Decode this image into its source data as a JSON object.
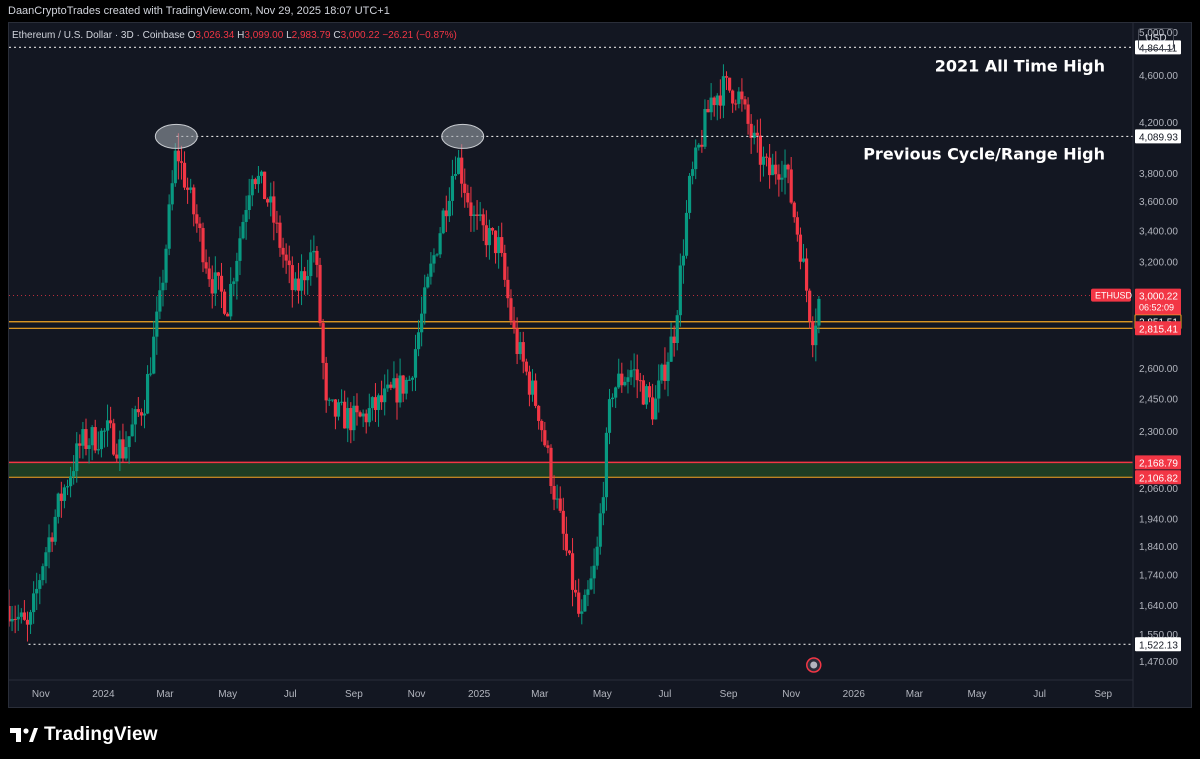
{
  "header": {
    "attribution": "DaanCryptoTrades created with TradingView.com, Nov 29, 2025 18:07 UTC+1"
  },
  "symbol": {
    "name": "Ethereum / U.S. Dollar · 3D · Coinbase",
    "open_label": "O",
    "open": "3,026.34",
    "high_label": "H",
    "high": "3,099.00",
    "low_label": "L",
    "low": "2,983.79",
    "close_label": "C",
    "close": "3,000.22",
    "change": "−26.21 (−0.87%)"
  },
  "currency": "USD",
  "footer": {
    "brand": "TradingView"
  },
  "colors": {
    "background": "#131722",
    "up": "#089981",
    "down": "#f23645",
    "orange_line": "#f5a623",
    "green_zone": "#1d3d24",
    "red_line": "#f23645"
  },
  "chart_data": {
    "type": "candlestick",
    "y_scale": "log",
    "ylim": [
      1420,
      5100
    ],
    "x_range": [
      "2023-10-01",
      "2026-09-30"
    ],
    "price_ticks": [
      "5,000.00",
      "4,600.00",
      "4,200.00",
      "3,800.00",
      "3,600.00",
      "3,400.00",
      "3,200.00",
      "2,600.00",
      "2,450.00",
      "2,300.00",
      "2,060.00",
      "1,940.00",
      "1,840.00",
      "1,740.00",
      "1,640.00",
      "1,550.00",
      "1,470.00"
    ],
    "price_tick_values": [
      5000,
      4600,
      4200,
      3800,
      3600,
      3400,
      3200,
      2600,
      2450,
      2300,
      2060,
      1940,
      1840,
      1740,
      1640,
      1550,
      1470
    ],
    "time_ticks": [
      {
        "label": "Nov",
        "date": "2023-11-01"
      },
      {
        "label": "2024",
        "date": "2024-01-01"
      },
      {
        "label": "Mar",
        "date": "2024-03-01"
      },
      {
        "label": "May",
        "date": "2024-05-01"
      },
      {
        "label": "Jul",
        "date": "2024-07-01"
      },
      {
        "label": "Sep",
        "date": "2024-09-01"
      },
      {
        "label": "Nov",
        "date": "2024-11-01"
      },
      {
        "label": "2025",
        "date": "2025-01-01"
      },
      {
        "label": "Mar",
        "date": "2025-03-01"
      },
      {
        "label": "May",
        "date": "2025-05-01"
      },
      {
        "label": "Jul",
        "date": "2025-07-01"
      },
      {
        "label": "Sep",
        "date": "2025-09-01"
      },
      {
        "label": "Nov",
        "date": "2025-11-01"
      },
      {
        "label": "2026",
        "date": "2026-01-01"
      },
      {
        "label": "Mar",
        "date": "2026-03-01"
      },
      {
        "label": "May",
        "date": "2026-05-01"
      },
      {
        "label": "Jul",
        "date": "2026-07-01"
      },
      {
        "label": "Sep",
        "date": "2026-09-01"
      }
    ],
    "price_path": [
      [
        "2023-10-01",
        1640
      ],
      [
        "2023-10-20",
        1560
      ],
      [
        "2023-11-03",
        1790
      ],
      [
        "2023-11-20",
        2020
      ],
      [
        "2023-12-10",
        2250
      ],
      [
        "2024-01-05",
        2300
      ],
      [
        "2024-01-20",
        2220
      ],
      [
        "2024-02-10",
        2450
      ],
      [
        "2024-02-25",
        2950
      ],
      [
        "2024-03-12",
        4000
      ],
      [
        "2024-03-30",
        3500
      ],
      [
        "2024-04-15",
        3100
      ],
      [
        "2024-05-01",
        2950
      ],
      [
        "2024-05-25",
        3850
      ],
      [
        "2024-06-10",
        3600
      ],
      [
        "2024-07-05",
        3000
      ],
      [
        "2024-07-25",
        3300
      ],
      [
        "2024-08-05",
        2400
      ],
      [
        "2024-09-05",
        2350
      ],
      [
        "2024-10-01",
        2450
      ],
      [
        "2024-10-25",
        2550
      ],
      [
        "2024-11-15",
        3150
      ],
      [
        "2024-12-10",
        3950
      ],
      [
        "2024-12-28",
        3450
      ],
      [
        "2025-01-20",
        3300
      ],
      [
        "2025-02-05",
        2750
      ],
      [
        "2025-02-28",
        2400
      ],
      [
        "2025-03-20",
        1950
      ],
      [
        "2025-04-10",
        1580
      ],
      [
        "2025-04-25",
        1780
      ],
      [
        "2025-05-10",
        2500
      ],
      [
        "2025-05-30",
        2600
      ],
      [
        "2025-06-20",
        2400
      ],
      [
        "2025-07-10",
        2800
      ],
      [
        "2025-07-25",
        3700
      ],
      [
        "2025-08-15",
        4400
      ],
      [
        "2025-08-28",
        4500
      ],
      [
        "2025-09-10",
        4450
      ],
      [
        "2025-09-25",
        4050
      ],
      [
        "2025-10-10",
        3800
      ],
      [
        "2025-10-25",
        3900
      ],
      [
        "2025-11-10",
        3300
      ],
      [
        "2025-11-22",
        2800
      ],
      [
        "2025-11-29",
        3000
      ]
    ],
    "levels": [
      {
        "value": 4864.11,
        "label": "4,864.11",
        "style": "dotted-white"
      },
      {
        "value": 4089.93,
        "label": "4,089.93",
        "style": "dotted-white"
      },
      {
        "value": 3000.22,
        "label": "3,000.22",
        "style": "current"
      },
      {
        "value": 2851.51,
        "label": "2,851.51",
        "style": "orange"
      },
      {
        "value": 2815.41,
        "label": "2,815.41",
        "style": "orange-red"
      },
      {
        "value": 2168.79,
        "label": "2,168.79",
        "style": "red-zone-top"
      },
      {
        "value": 2106.82,
        "label": "2,106.82",
        "style": "red-zone-bottom"
      },
      {
        "value": 1522.13,
        "label": "1,522.13",
        "style": "dotted-white"
      }
    ],
    "current_price": {
      "symbol": "ETHUSD",
      "value": "3,000.22",
      "countdown": "06:52:09"
    },
    "annotations": [
      {
        "text": "2021 All Time High",
        "anchor_value": 4864.11
      },
      {
        "text": "Previous Cycle/Range High",
        "anchor_value": 4089.93
      }
    ],
    "highlights": [
      {
        "date": "2024-03-12",
        "value": 4089.93
      },
      {
        "date": "2024-12-16",
        "value": 4089.93
      }
    ]
  }
}
